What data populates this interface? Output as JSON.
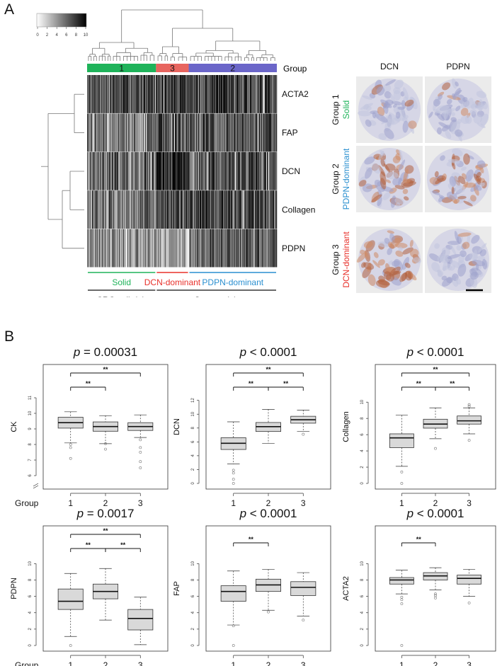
{
  "panel_a": {
    "letter": "A",
    "colorbar_ticks": [
      "0",
      "2",
      "4",
      "6",
      "8",
      "10"
    ],
    "group_row_label": "Group",
    "groups": [
      {
        "id": "1",
        "color": "#1fb35a",
        "weight": 97
      },
      {
        "id": "3",
        "color": "#e8655f",
        "weight": 46
      },
      {
        "id": "2",
        "color": "#6b66c9",
        "weight": 124
      }
    ],
    "markers": [
      "ACTA2",
      "FAP",
      "DCN",
      "Collagen",
      "PDPN"
    ],
    "subtypes": [
      {
        "label": "Solid",
        "color": "#1fb35a"
      },
      {
        "label": "DCN-dominant",
        "color": "#e8302a"
      },
      {
        "label": "PDPN-dominant",
        "color": "#2a8fd0"
      }
    ],
    "categories": [
      {
        "label": "CRC cell-rich"
      },
      {
        "label": "Stroma-rich"
      }
    ],
    "ihc": {
      "col_headers": [
        "DCN",
        "PDPN"
      ],
      "rows": [
        {
          "group": "Group 1",
          "subtype": "Solid",
          "color": "#1fb35a"
        },
        {
          "group": "Group 2",
          "subtype": "PDPN-dominant",
          "color": "#2a8fd0"
        },
        {
          "group": "Group 3",
          "subtype": "DCN-dominant",
          "color": "#e8302a"
        }
      ]
    }
  },
  "panel_b": {
    "letter": "B",
    "x_axis_title": "Group",
    "significance": "**",
    "plots": [
      {
        "p_prefix": "p",
        "p_text": " = 0.00031",
        "ylabel": "CK",
        "yticks": [
          6,
          7,
          8,
          9,
          10,
          11
        ],
        "ylim": [
          5.5,
          11.5
        ],
        "axis_break": true,
        "box": [
          {
            "group": "1",
            "min": 8.1,
            "q1": 9.05,
            "median": 9.4,
            "q3": 9.75,
            "max": 10.1,
            "outliers": [
              7.1,
              7.8,
              8.0
            ]
          },
          {
            "group": "2",
            "min": 8.05,
            "q1": 8.85,
            "median": 9.15,
            "q3": 9.45,
            "max": 9.85,
            "outliers": [
              7.7,
              8.05
            ]
          },
          {
            "group": "3",
            "min": 8.45,
            "q1": 8.9,
            "median": 9.15,
            "q3": 9.4,
            "max": 9.9,
            "outliers": [
              6.5,
              6.9,
              7.5,
              7.8,
              8.3
            ]
          }
        ],
        "brackets": [
          [
            1,
            3
          ],
          [
            1,
            2
          ]
        ]
      },
      {
        "p_prefix": "p",
        "p_text": " < 0.0001",
        "ylabel": "DCN",
        "yticks": [
          0,
          2,
          4,
          6,
          8,
          10,
          12
        ],
        "ylim": [
          0,
          13.5
        ],
        "axis_break": false,
        "box": [
          {
            "group": "1",
            "min": 2.8,
            "q1": 4.9,
            "median": 5.8,
            "q3": 6.6,
            "max": 8.9,
            "outliers": [
              0,
              0.6,
              1.5,
              1.9
            ]
          },
          {
            "group": "2",
            "min": 5.8,
            "q1": 7.5,
            "median": 8.2,
            "q3": 8.8,
            "max": 10.7,
            "outliers": []
          },
          {
            "group": "3",
            "min": 7.5,
            "q1": 8.7,
            "median": 9.2,
            "q3": 9.7,
            "max": 10.6,
            "outliers": [
              7.1
            ]
          }
        ],
        "brackets": [
          [
            1,
            3
          ],
          [
            1,
            2
          ],
          [
            2,
            3
          ]
        ]
      },
      {
        "p_prefix": "p",
        "p_text": " < 0.0001",
        "ylabel": "Collagen",
        "yticks": [
          0,
          2,
          4,
          6,
          8,
          10
        ],
        "ylim": [
          0,
          11.5
        ],
        "axis_break": false,
        "box": [
          {
            "group": "1",
            "min": 2.1,
            "q1": 4.4,
            "median": 5.6,
            "q3": 6.1,
            "max": 8.4,
            "outliers": [
              0,
              1.4
            ]
          },
          {
            "group": "2",
            "min": 5.5,
            "q1": 6.8,
            "median": 7.3,
            "q3": 7.9,
            "max": 9.3,
            "outliers": [
              4.3
            ]
          },
          {
            "group": "3",
            "min": 6.1,
            "q1": 7.3,
            "median": 7.7,
            "q3": 8.3,
            "max": 9.3,
            "outliers": [
              5.3,
              9.5,
              9.7
            ]
          }
        ],
        "brackets": [
          [
            1,
            3
          ],
          [
            1,
            2
          ],
          [
            2,
            3
          ]
        ]
      },
      {
        "p_prefix": "p",
        "p_text": " = 0.0017",
        "ylabel": "PDPN",
        "yticks": [
          0,
          2,
          4,
          6,
          8,
          10
        ],
        "ylim": [
          0,
          11.5
        ],
        "axis_break": false,
        "box": [
          {
            "group": "1",
            "min": 1.1,
            "q1": 4.4,
            "median": 5.4,
            "q3": 6.9,
            "max": 8.8,
            "outliers": [
              0
            ]
          },
          {
            "group": "2",
            "min": 3.1,
            "q1": 5.7,
            "median": 6.6,
            "q3": 7.5,
            "max": 9.4,
            "outliers": []
          },
          {
            "group": "3",
            "min": 0.1,
            "q1": 1.9,
            "median": 3.3,
            "q3": 4.4,
            "max": 5.9,
            "outliers": []
          }
        ],
        "brackets": [
          [
            1,
            3
          ],
          [
            1,
            2
          ],
          [
            2,
            3
          ]
        ]
      },
      {
        "p_prefix": "p",
        "p_text": " < 0.0001",
        "ylabel": "FAP",
        "yticks": [
          0,
          2,
          4,
          6,
          8,
          10
        ],
        "ylim": [
          0,
          11.5
        ],
        "axis_break": false,
        "box": [
          {
            "group": "1",
            "min": 2.5,
            "q1": 5.4,
            "median": 6.6,
            "q3": 7.3,
            "max": 9.1,
            "outliers": [
              0,
              2.4
            ]
          },
          {
            "group": "2",
            "min": 4.3,
            "q1": 6.6,
            "median": 7.4,
            "q3": 8.1,
            "max": 9.3,
            "outliers": [
              4.1
            ]
          },
          {
            "group": "3",
            "min": 3.6,
            "q1": 6.1,
            "median": 7.1,
            "q3": 7.8,
            "max": 8.9,
            "outliers": [
              3.1
            ]
          }
        ],
        "brackets": [
          [
            1,
            2
          ]
        ]
      },
      {
        "p_prefix": "p",
        "p_text": " < 0.0001",
        "ylabel": "ACTA2",
        "yticks": [
          0,
          2,
          4,
          6,
          8,
          10
        ],
        "ylim": [
          0,
          11.5
        ],
        "axis_break": false,
        "box": [
          {
            "group": "1",
            "min": 6.3,
            "q1": 7.5,
            "median": 8.0,
            "q3": 8.3,
            "max": 9.2,
            "outliers": [
              0,
              5.1,
              5.6,
              5.9
            ]
          },
          {
            "group": "2",
            "min": 6.8,
            "q1": 8.0,
            "median": 8.5,
            "q3": 8.9,
            "max": 9.5,
            "outliers": [
              5.8,
              6.1,
              6.3
            ]
          },
          {
            "group": "3",
            "min": 6.0,
            "q1": 7.5,
            "median": 8.2,
            "q3": 8.6,
            "max": 9.3,
            "outliers": [
              5.2
            ]
          }
        ],
        "brackets": [
          [
            1,
            2
          ]
        ]
      }
    ]
  }
}
